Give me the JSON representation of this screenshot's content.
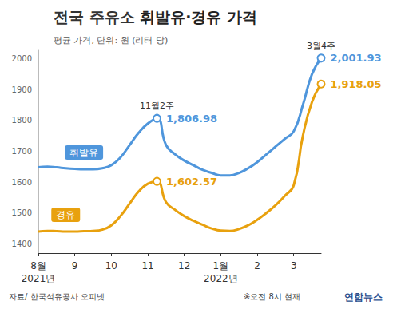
{
  "chart_data": {
    "type": "line",
    "title": "전국 주유소 휘발유·경유 가격",
    "subtitle": "평균 가격, 단위: 원 (리터 당)",
    "source": "자료/ 한국석유공사 오피넷",
    "note": "※오전 8시 현재",
    "credit": "연합뉴스",
    "categories": [
      "8월\n2021년",
      null,
      null,
      null,
      "9",
      null,
      null,
      null,
      "10",
      null,
      null,
      null,
      "11",
      null,
      null,
      null,
      "12",
      null,
      null,
      null,
      "1월\n2022년",
      null,
      null,
      null,
      "2",
      null,
      null,
      null,
      "3",
      null,
      null,
      null
    ],
    "series": [
      {
        "name": "휘발유",
        "color": "#4f96dc",
        "values": [
          1648,
          1650,
          1648,
          1645,
          1643,
          1642,
          1642,
          1645,
          1655,
          1680,
          1720,
          1760,
          1790,
          1806.98,
          1720,
          1690,
          1670,
          1655,
          1640,
          1630,
          1622,
          1622,
          1630,
          1645,
          1665,
          1690,
          1715,
          1740,
          1765,
          1850,
          1950,
          2001.93
        ],
        "value_labels": [
          null,
          null,
          null,
          null,
          null,
          null,
          null,
          null,
          null,
          null,
          null,
          null,
          null,
          "1,806.98",
          null,
          null,
          null,
          null,
          null,
          null,
          null,
          null,
          null,
          null,
          null,
          null,
          null,
          null,
          null,
          null,
          null,
          "2,001.93"
        ]
      },
      {
        "name": "경유",
        "color": "#e8a10e",
        "values": [
          1440,
          1442,
          1441,
          1440,
          1440,
          1441,
          1442,
          1446,
          1460,
          1490,
          1530,
          1570,
          1595,
          1602.57,
          1535,
          1510,
          1490,
          1475,
          1462,
          1450,
          1443,
          1442,
          1448,
          1460,
          1478,
          1500,
          1525,
          1555,
          1590,
          1750,
          1860,
          1918.05
        ],
        "value_labels": [
          null,
          null,
          null,
          null,
          null,
          null,
          null,
          null,
          null,
          null,
          null,
          null,
          null,
          "1,602.57",
          null,
          null,
          null,
          null,
          null,
          null,
          null,
          null,
          null,
          null,
          null,
          null,
          null,
          null,
          null,
          null,
          null,
          "1,918.05"
        ]
      }
    ],
    "annotations": [
      {
        "text": "11월2주",
        "series": "휘발유",
        "index": 13
      },
      {
        "text": "3월4주",
        "series": "휘발유",
        "index": 31
      }
    ],
    "ylim": [
      1370,
      2030
    ],
    "yticks": [
      1400,
      1500,
      1600,
      1700,
      1800,
      1900,
      2000
    ],
    "grid": false,
    "data_labels": true
  }
}
